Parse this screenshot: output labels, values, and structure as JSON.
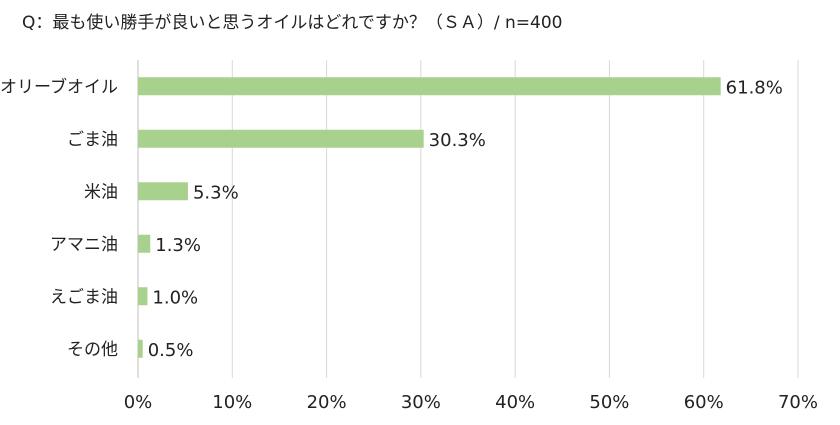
{
  "chart_data": {
    "type": "bar",
    "orientation": "horizontal",
    "title": "Q：最も使い勝手が良いと思うオイルはどれですか？（ＳＡ）/ n=400",
    "categories": [
      "オリーブオイル",
      "ごま油",
      "米油",
      "アマニ油",
      "えごま油",
      "その他"
    ],
    "values": [
      61.8,
      30.3,
      5.3,
      1.3,
      1.0,
      0.5
    ],
    "value_labels": [
      "61.8%",
      "30.3%",
      "5.3%",
      "1.3%",
      "1.0%",
      "0.5%"
    ],
    "xlim": [
      0,
      70
    ],
    "x_ticks": [
      0,
      10,
      20,
      30,
      40,
      50,
      60,
      70
    ],
    "x_tick_labels": [
      "0%",
      "10%",
      "20%",
      "30%",
      "40%",
      "50%",
      "60%",
      "70%"
    ],
    "xlabel": "",
    "ylabel": "",
    "grid": "vertical",
    "legend": "none",
    "bar_color": "#a9d18e",
    "grid_color": "#d9d9d9"
  }
}
